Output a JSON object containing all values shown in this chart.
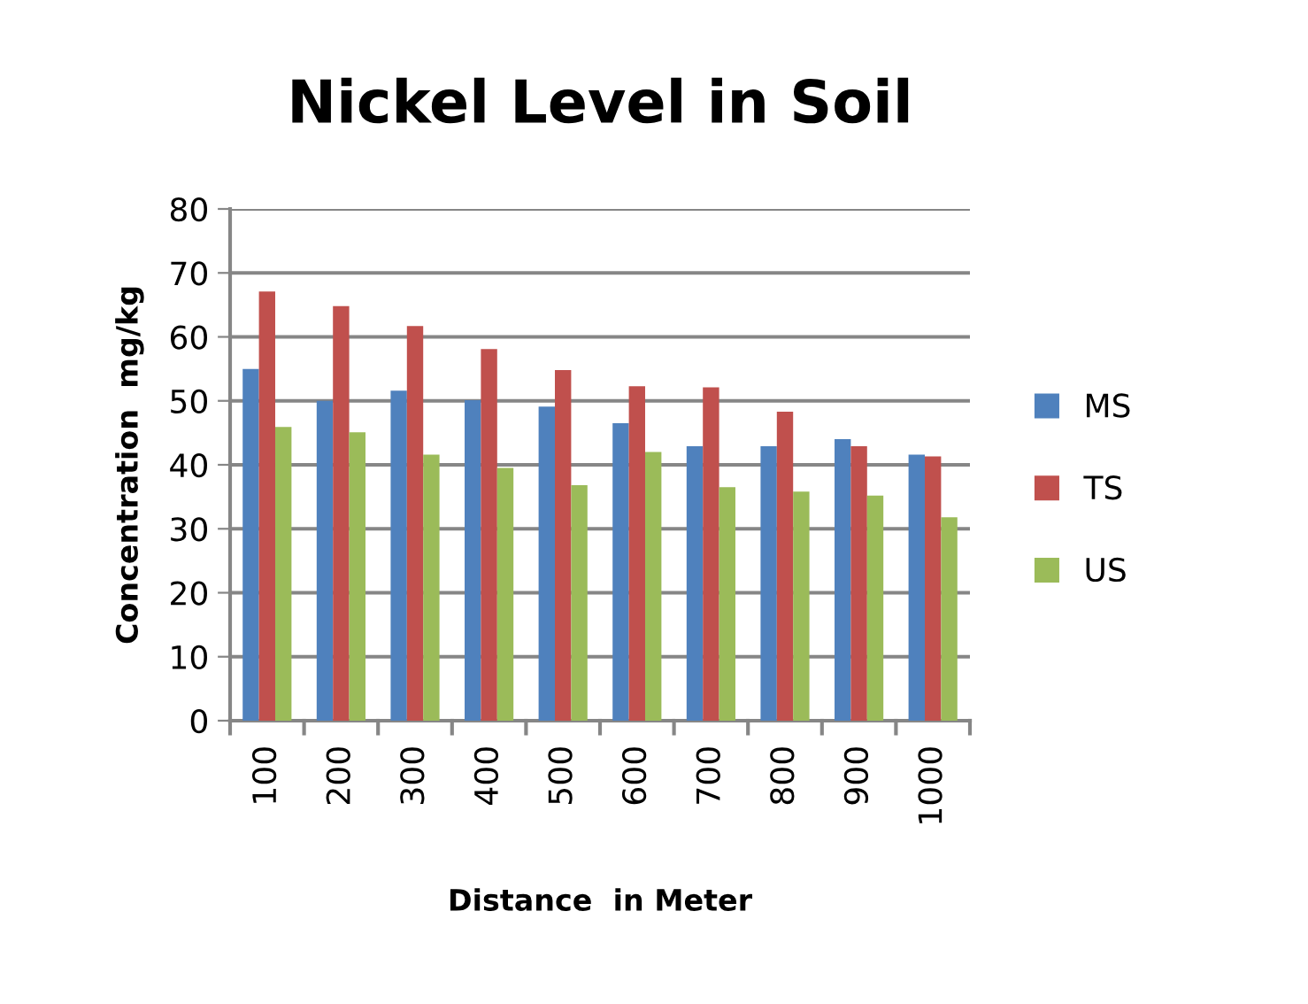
{
  "chart_data": {
    "type": "bar",
    "title": "Nickel Level in Soil",
    "xlabel": "Distance  in Meter",
    "ylabel": "Concentration  mg/kg",
    "categories": [
      "100",
      "200",
      "300",
      "400",
      "500",
      "600",
      "700",
      "800",
      "900",
      "1000"
    ],
    "series": [
      {
        "name": "MS",
        "color": "#4f81bd",
        "values": [
          55.0,
          50.0,
          51.6,
          50.1,
          49.1,
          46.5,
          42.9,
          42.9,
          44.0,
          41.6
        ]
      },
      {
        "name": "TS",
        "color": "#c0504d",
        "values": [
          67.1,
          64.8,
          61.7,
          58.1,
          54.8,
          52.3,
          52.1,
          48.3,
          42.9,
          41.3
        ]
      },
      {
        "name": "US",
        "color": "#9bbb59",
        "values": [
          45.9,
          45.1,
          41.6,
          39.5,
          36.8,
          42.0,
          36.5,
          35.8,
          35.2,
          31.8
        ]
      }
    ],
    "ylim": [
      0,
      80
    ],
    "yticks": [
      0,
      10,
      20,
      30,
      40,
      50,
      60,
      70,
      80
    ],
    "grid": "y",
    "legend": "right"
  }
}
